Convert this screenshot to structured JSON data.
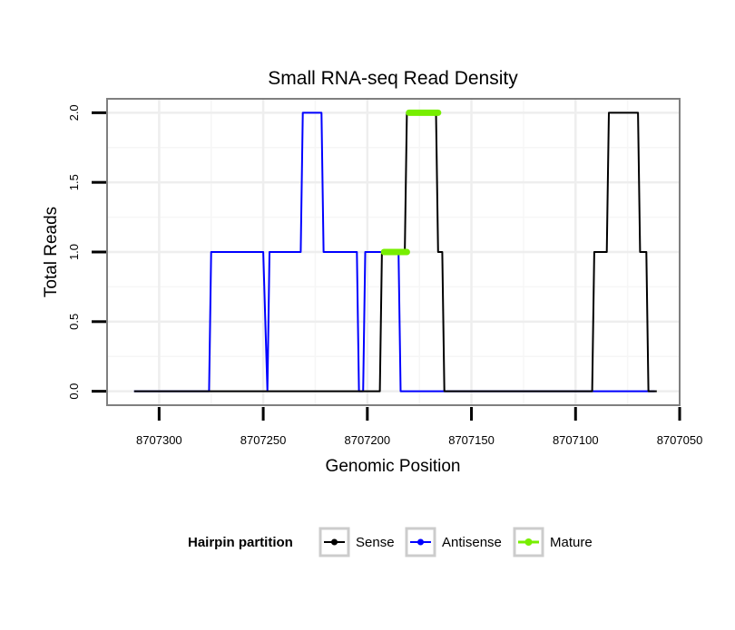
{
  "chart_data": {
    "type": "line",
    "title": "Small RNA-seq Read Density",
    "xlabel": "Genomic Position",
    "ylabel": "Total Reads",
    "xlim": [
      8707325,
      8707050
    ],
    "ylim": [
      -0.1,
      2.1
    ],
    "xticks": [
      8707300,
      8707250,
      8707200,
      8707150,
      8707100,
      8707050
    ],
    "xtick_labels": [
      "8707300",
      "8707250",
      "8707200",
      "8707150",
      "8707100",
      "8707050"
    ],
    "yticks": [
      0,
      0.5,
      1,
      1.5,
      2
    ],
    "ytick_labels": [
      "0.0",
      "0.5",
      "1.0",
      "1.5",
      "2.0"
    ],
    "grid": true,
    "legend": {
      "title": "Hairpin partition",
      "position": "bottom",
      "entries": [
        {
          "name": "Sense",
          "color": "#000000"
        },
        {
          "name": "Antisense",
          "color": "#0000ff"
        },
        {
          "name": "Mature",
          "color": "#77ee00"
        }
      ]
    },
    "series": [
      {
        "name": "Antisense",
        "color": "#0000ff",
        "points": [
          [
            8707312,
            0
          ],
          [
            8707276,
            0
          ],
          [
            8707275,
            1
          ],
          [
            8707250,
            1
          ],
          [
            8707248,
            0
          ],
          [
            8707247,
            1
          ],
          [
            8707232,
            1
          ],
          [
            8707231,
            2
          ],
          [
            8707222,
            2
          ],
          [
            8707221,
            1
          ],
          [
            8707205,
            1
          ],
          [
            8707204,
            0
          ],
          [
            8707202,
            0
          ],
          [
            8707201,
            1
          ],
          [
            8707192,
            1
          ],
          [
            8707190,
            1
          ],
          [
            8707185,
            1
          ],
          [
            8707184,
            0
          ],
          [
            8707062,
            0
          ]
        ]
      },
      {
        "name": "Sense",
        "color": "#000000",
        "points": [
          [
            8707312,
            0
          ],
          [
            8707194,
            0
          ],
          [
            8707193,
            1
          ],
          [
            8707182,
            1
          ],
          [
            8707181,
            2
          ],
          [
            8707167,
            2
          ],
          [
            8707166,
            1
          ],
          [
            8707164,
            1
          ],
          [
            8707163,
            0
          ],
          [
            8707092,
            0
          ],
          [
            8707091,
            1
          ],
          [
            8707085,
            1
          ],
          [
            8707084,
            2
          ],
          [
            8707070,
            2
          ],
          [
            8707069,
            1
          ],
          [
            8707066,
            1
          ],
          [
            8707065,
            0
          ],
          [
            8707061,
            0
          ]
        ]
      },
      {
        "name": "Mature",
        "color": "#77ee00",
        "segments": [
          {
            "x": [
              8707192,
              8707181
            ],
            "y": 1
          },
          {
            "x": [
              8707180,
              8707166
            ],
            "y": 2
          }
        ]
      }
    ]
  }
}
